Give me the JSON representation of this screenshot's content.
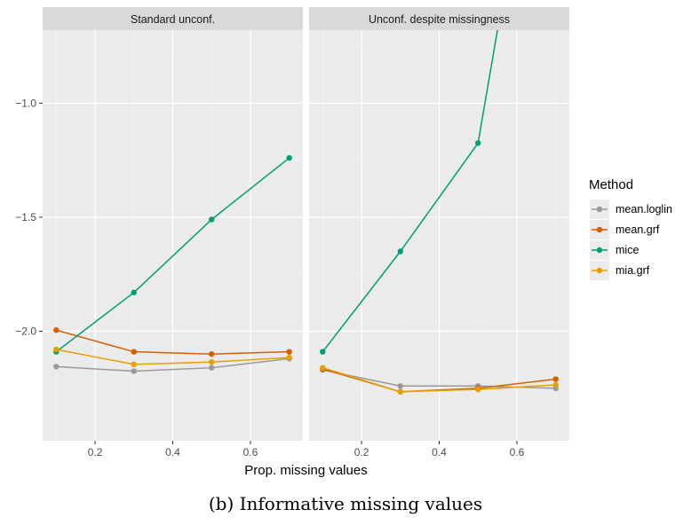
{
  "caption": "(b) Informative missing values",
  "chart_data": {
    "type": "line",
    "xlabel": "Prop. missing values",
    "ylabel": "",
    "xlim": [
      0.065,
      0.735
    ],
    "ylim": [
      -2.48,
      -0.68
    ],
    "x_ticks": [
      0.2,
      0.4,
      0.6
    ],
    "x_tick_labels": [
      "0.2",
      "0.4",
      "0.6"
    ],
    "y_ticks": [
      -1.0,
      -1.5,
      -2.0
    ],
    "y_tick_labels": [
      "−1.0",
      "−1.5",
      "−2.0"
    ],
    "grid": true,
    "legend": {
      "title": "Method",
      "placement": "right",
      "entries": [
        "mean.loglin",
        "mean.grf",
        "mice",
        "mia.grf"
      ]
    },
    "facets": [
      {
        "title": "Standard unconf.",
        "series": [
          {
            "name": "mean.loglin",
            "color": "#999999",
            "x": [
              0.1,
              0.3,
              0.5,
              0.7
            ],
            "y": [
              -2.155,
              -2.175,
              -2.16,
              -2.12
            ]
          },
          {
            "name": "mean.grf",
            "color": "#D55E00",
            "x": [
              0.1,
              0.3,
              0.5,
              0.7
            ],
            "y": [
              -1.995,
              -2.09,
              -2.1,
              -2.09
            ]
          },
          {
            "name": "mice",
            "color": "#009E73",
            "x": [
              0.1,
              0.3,
              0.5,
              0.7
            ],
            "y": [
              -2.09,
              -1.83,
              -1.51,
              -1.24
            ]
          },
          {
            "name": "mia.grf",
            "color": "#E69F00",
            "x": [
              0.1,
              0.3,
              0.5,
              0.7
            ],
            "y": [
              -2.08,
              -2.145,
              -2.135,
              -2.115
            ]
          }
        ]
      },
      {
        "title": "Unconf. despite missingness",
        "series": [
          {
            "name": "mean.loglin",
            "color": "#999999",
            "x": [
              0.1,
              0.3,
              0.5,
              0.7
            ],
            "y": [
              -2.17,
              -2.24,
              -2.24,
              -2.25
            ]
          },
          {
            "name": "mean.grf",
            "color": "#D55E00",
            "x": [
              0.1,
              0.3,
              0.5,
              0.7
            ],
            "y": [
              -2.165,
              -2.265,
              -2.25,
              -2.21
            ]
          },
          {
            "name": "mice",
            "color": "#009E73",
            "x": [
              0.1,
              0.3,
              0.5,
              0.55
            ],
            "y": [
              -2.09,
              -1.65,
              -1.175,
              -0.68
            ],
            "markers": [
              true,
              true,
              true,
              false
            ]
          },
          {
            "name": "mia.grf",
            "color": "#E69F00",
            "x": [
              0.1,
              0.3,
              0.5,
              0.7
            ],
            "y": [
              -2.16,
              -2.265,
              -2.255,
              -2.235
            ]
          }
        ]
      }
    ]
  }
}
